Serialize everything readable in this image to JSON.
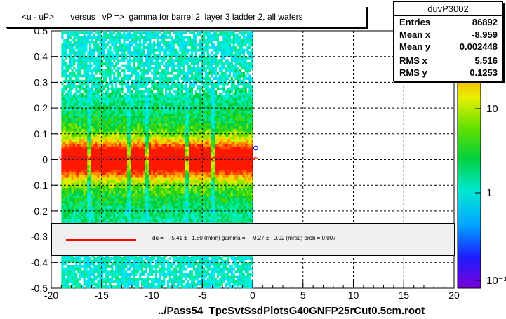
{
  "title": "<u - uP>       versus   vP =>  gamma for barrel 2, layer 3 ladder 2, all wafers",
  "stats": {
    "name": "duvP3002",
    "rows": [
      {
        "k": "Entries",
        "v": "86892"
      },
      {
        "k": "Mean x",
        "v": "-8.959"
      },
      {
        "k": "Mean y",
        "v": "0.002448"
      },
      {
        "k": "RMS x",
        "v": "5.516"
      },
      {
        "k": "RMS y",
        "v": "0.1253"
      }
    ]
  },
  "legend_text": "du =    -5.41 ±   1.80 (mkm) gamma =    -0.27 ±   0.02 (mrad) prob = 0.007",
  "xfile": "../Pass54_TpcSvtSsdPlotsG40GNFP25rCut0.5cm.root",
  "colors": {
    "fit_line": "#ff0000",
    "profile_marker": "#0000ff",
    "background": "#ffffff"
  },
  "chart_data": {
    "type": "heatmap",
    "xlim": [
      -20,
      20
    ],
    "ylim": [
      -0.5,
      0.5
    ],
    "x_ticks": [
      "-20",
      "-15",
      "-10",
      "-5",
      "0",
      "5",
      "10",
      "15",
      "20"
    ],
    "y_ticks": [
      "-0.5",
      "-0.4",
      "-0.3",
      "-0.2",
      "-0.1",
      "0",
      "0.1",
      "0.2",
      "0.3",
      "0.4",
      "0.5"
    ],
    "z_scale": "log",
    "z_ticks": [
      "10",
      "1",
      "10⁻¹"
    ],
    "grid": true,
    "data_x_range": [
      -19,
      0
    ],
    "profile_y": 0.005,
    "fit": {
      "du_mkm": -5.41,
      "du_err": 1.8,
      "gamma_mrad": -0.27,
      "gamma_err": 0.02,
      "prob": 0.007
    }
  }
}
